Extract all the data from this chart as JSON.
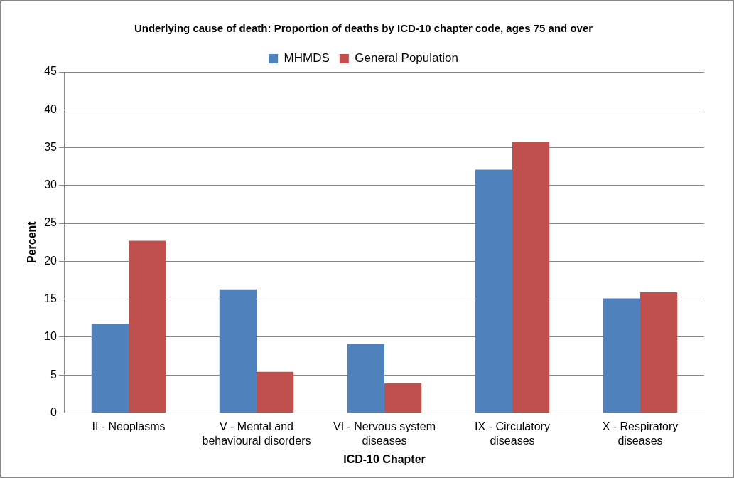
{
  "chart_data": {
    "type": "bar",
    "title": "Underlying cause of death: Proportion of deaths by ICD-10 chapter code, ages 75 and over",
    "xlabel": "ICD-10 Chapter",
    "ylabel": "Percent",
    "categories": [
      "II - Neoplasms",
      "V - Mental and behavioural disorders",
      "VI - Nervous system diseases",
      "IX - Circulatory diseases",
      "X - Respiratory diseases"
    ],
    "series": [
      {
        "name": "MHMDS",
        "color": "#4f81bd",
        "values": [
          11.7,
          16.3,
          9.1,
          32.1,
          15.1
        ]
      },
      {
        "name": "General Population",
        "color": "#c0504d",
        "values": [
          22.7,
          5.4,
          3.9,
          35.7,
          15.9
        ]
      }
    ],
    "ylim": [
      0,
      45
    ],
    "yticks": [
      0,
      5,
      10,
      15,
      20,
      25,
      30,
      35,
      40,
      45
    ],
    "grid": "y",
    "legend": "top"
  }
}
